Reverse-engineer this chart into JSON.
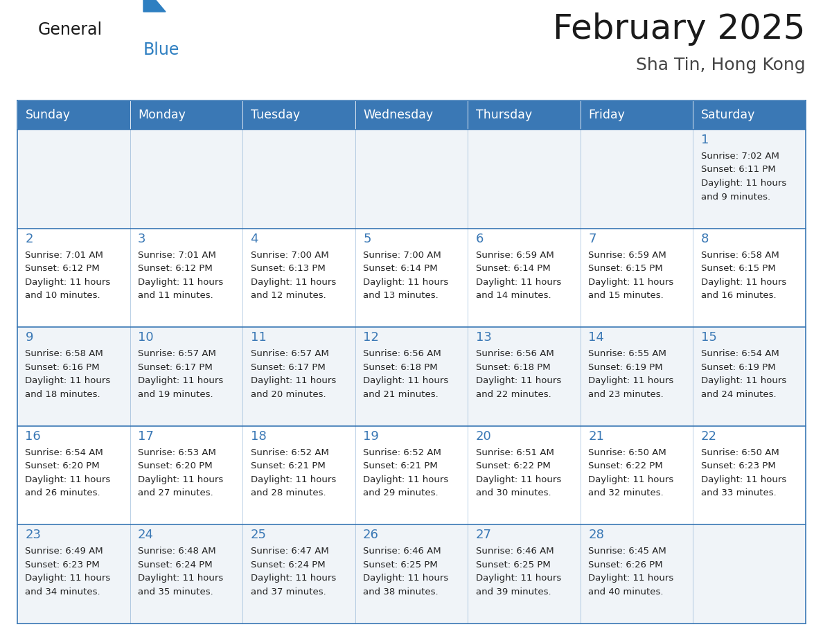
{
  "title": "February 2025",
  "subtitle": "Sha Tin, Hong Kong",
  "days_of_week": [
    "Sunday",
    "Monday",
    "Tuesday",
    "Wednesday",
    "Thursday",
    "Friday",
    "Saturday"
  ],
  "header_bg": "#3a78b5",
  "header_text": "#ffffff",
  "cell_bg_odd": "#f0f4f8",
  "cell_bg_even": "#ffffff",
  "border_color": "#3a78b5",
  "day_num_color": "#3a78b5",
  "cell_text_color": "#222222",
  "title_color": "#1a1a1a",
  "subtitle_color": "#444444",
  "logo_general_color": "#1a1a1a",
  "logo_blue_color": "#2e7fc1",
  "calendar_data": [
    [
      null,
      null,
      null,
      null,
      null,
      null,
      {
        "day": 1,
        "sunrise": "7:02 AM",
        "sunset": "6:11 PM",
        "daylight1": "11 hours",
        "daylight2": "and 9 minutes."
      }
    ],
    [
      {
        "day": 2,
        "sunrise": "7:01 AM",
        "sunset": "6:12 PM",
        "daylight1": "11 hours",
        "daylight2": "and 10 minutes."
      },
      {
        "day": 3,
        "sunrise": "7:01 AM",
        "sunset": "6:12 PM",
        "daylight1": "11 hours",
        "daylight2": "and 11 minutes."
      },
      {
        "day": 4,
        "sunrise": "7:00 AM",
        "sunset": "6:13 PM",
        "daylight1": "11 hours",
        "daylight2": "and 12 minutes."
      },
      {
        "day": 5,
        "sunrise": "7:00 AM",
        "sunset": "6:14 PM",
        "daylight1": "11 hours",
        "daylight2": "and 13 minutes."
      },
      {
        "day": 6,
        "sunrise": "6:59 AM",
        "sunset": "6:14 PM",
        "daylight1": "11 hours",
        "daylight2": "and 14 minutes."
      },
      {
        "day": 7,
        "sunrise": "6:59 AM",
        "sunset": "6:15 PM",
        "daylight1": "11 hours",
        "daylight2": "and 15 minutes."
      },
      {
        "day": 8,
        "sunrise": "6:58 AM",
        "sunset": "6:15 PM",
        "daylight1": "11 hours",
        "daylight2": "and 16 minutes."
      }
    ],
    [
      {
        "day": 9,
        "sunrise": "6:58 AM",
        "sunset": "6:16 PM",
        "daylight1": "11 hours",
        "daylight2": "and 18 minutes."
      },
      {
        "day": 10,
        "sunrise": "6:57 AM",
        "sunset": "6:17 PM",
        "daylight1": "11 hours",
        "daylight2": "and 19 minutes."
      },
      {
        "day": 11,
        "sunrise": "6:57 AM",
        "sunset": "6:17 PM",
        "daylight1": "11 hours",
        "daylight2": "and 20 minutes."
      },
      {
        "day": 12,
        "sunrise": "6:56 AM",
        "sunset": "6:18 PM",
        "daylight1": "11 hours",
        "daylight2": "and 21 minutes."
      },
      {
        "day": 13,
        "sunrise": "6:56 AM",
        "sunset": "6:18 PM",
        "daylight1": "11 hours",
        "daylight2": "and 22 minutes."
      },
      {
        "day": 14,
        "sunrise": "6:55 AM",
        "sunset": "6:19 PM",
        "daylight1": "11 hours",
        "daylight2": "and 23 minutes."
      },
      {
        "day": 15,
        "sunrise": "6:54 AM",
        "sunset": "6:19 PM",
        "daylight1": "11 hours",
        "daylight2": "and 24 minutes."
      }
    ],
    [
      {
        "day": 16,
        "sunrise": "6:54 AM",
        "sunset": "6:20 PM",
        "daylight1": "11 hours",
        "daylight2": "and 26 minutes."
      },
      {
        "day": 17,
        "sunrise": "6:53 AM",
        "sunset": "6:20 PM",
        "daylight1": "11 hours",
        "daylight2": "and 27 minutes."
      },
      {
        "day": 18,
        "sunrise": "6:52 AM",
        "sunset": "6:21 PM",
        "daylight1": "11 hours",
        "daylight2": "and 28 minutes."
      },
      {
        "day": 19,
        "sunrise": "6:52 AM",
        "sunset": "6:21 PM",
        "daylight1": "11 hours",
        "daylight2": "and 29 minutes."
      },
      {
        "day": 20,
        "sunrise": "6:51 AM",
        "sunset": "6:22 PM",
        "daylight1": "11 hours",
        "daylight2": "and 30 minutes."
      },
      {
        "day": 21,
        "sunrise": "6:50 AM",
        "sunset": "6:22 PM",
        "daylight1": "11 hours",
        "daylight2": "and 32 minutes."
      },
      {
        "day": 22,
        "sunrise": "6:50 AM",
        "sunset": "6:23 PM",
        "daylight1": "11 hours",
        "daylight2": "and 33 minutes."
      }
    ],
    [
      {
        "day": 23,
        "sunrise": "6:49 AM",
        "sunset": "6:23 PM",
        "daylight1": "11 hours",
        "daylight2": "and 34 minutes."
      },
      {
        "day": 24,
        "sunrise": "6:48 AM",
        "sunset": "6:24 PM",
        "daylight1": "11 hours",
        "daylight2": "and 35 minutes."
      },
      {
        "day": 25,
        "sunrise": "6:47 AM",
        "sunset": "6:24 PM",
        "daylight1": "11 hours",
        "daylight2": "and 37 minutes."
      },
      {
        "day": 26,
        "sunrise": "6:46 AM",
        "sunset": "6:25 PM",
        "daylight1": "11 hours",
        "daylight2": "and 38 minutes."
      },
      {
        "day": 27,
        "sunrise": "6:46 AM",
        "sunset": "6:25 PM",
        "daylight1": "11 hours",
        "daylight2": "and 39 minutes."
      },
      {
        "day": 28,
        "sunrise": "6:45 AM",
        "sunset": "6:26 PM",
        "daylight1": "11 hours",
        "daylight2": "and 40 minutes."
      },
      null
    ]
  ],
  "figsize": [
    11.88,
    9.18
  ],
  "dpi": 100
}
